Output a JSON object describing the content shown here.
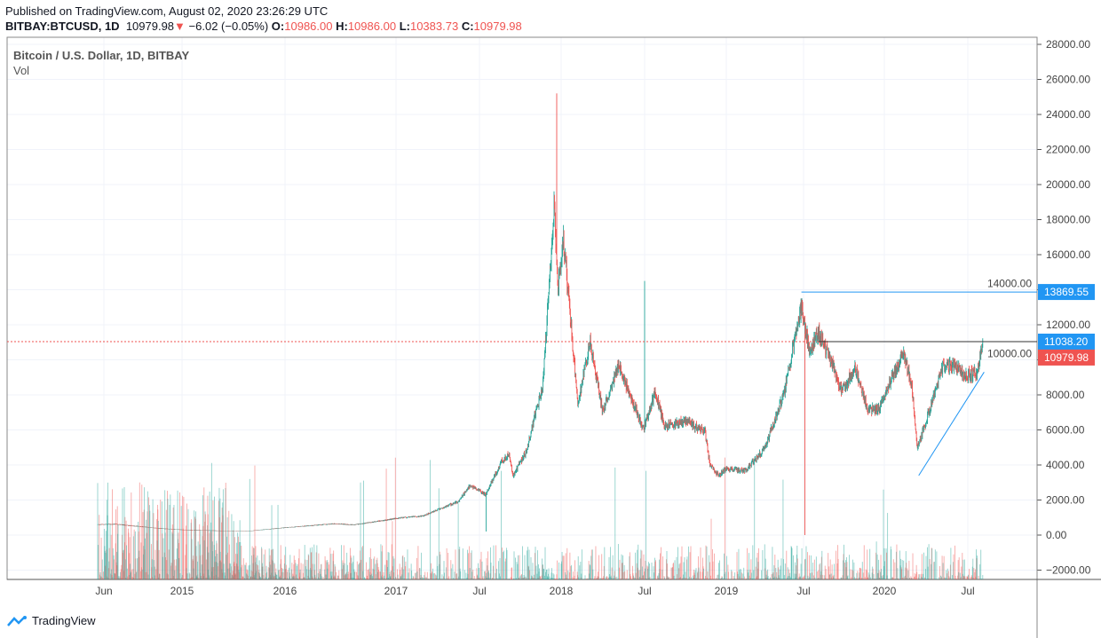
{
  "header": {
    "published": "Published on TradingView.com, August 02, 2020 23:26:29 UTC",
    "symbol": "BITBAY:BTCUSD, 1D",
    "last": "10979.98",
    "change": "−6.02 (−0.05%)",
    "o_label": "O:",
    "o": "10986.00",
    "h_label": "H:",
    "h": "10986.00",
    "l_label": "L:",
    "l": "10383.73",
    "c_label": "C:",
    "c": "10979.98"
  },
  "legend": {
    "title": "Bitcoin / U.S. Dollar, 1D, BITBAY",
    "vol": "Vol"
  },
  "footer": {
    "brand": "TradingView"
  },
  "colors": {
    "up": "#26a69a",
    "down": "#ef5350",
    "line": "#2196f3",
    "grid": "#f0f3fa"
  },
  "chart_data": {
    "type": "candlestick",
    "yticks": [
      "28000.00",
      "26000.00",
      "24000.00",
      "22000.00",
      "20000.00",
      "18000.00",
      "16000.00",
      "14000.00",
      "12000.00",
      "10000.00",
      "8000.00",
      "6000.00",
      "4000.00",
      "2000.00",
      "0.00",
      "−2000.00"
    ],
    "ylim": [
      -2500,
      28500
    ],
    "xticks": [
      {
        "date": "2014-06-01",
        "label": "Jun"
      },
      {
        "date": "2015-01-01",
        "label": "2015"
      },
      {
        "date": "2016-01-01",
        "label": "2016"
      },
      {
        "date": "2017-01-01",
        "label": "2017"
      },
      {
        "date": "2017-07-01",
        "label": "Jul"
      },
      {
        "date": "2018-01-01",
        "label": "2018"
      },
      {
        "date": "2018-07-01",
        "label": "Jul"
      },
      {
        "date": "2019-01-01",
        "label": "2019"
      },
      {
        "date": "2019-07-01",
        "label": "Jul"
      },
      {
        "date": "2020-01-01",
        "label": "2020"
      },
      {
        "date": "2020-07-01",
        "label": "Jul"
      }
    ],
    "price_path": [
      [
        "2014-05-20",
        600
      ],
      [
        "2014-07-01",
        620
      ],
      [
        "2014-09-01",
        500
      ],
      [
        "2014-11-01",
        380
      ],
      [
        "2015-01-01",
        300
      ],
      [
        "2015-03-01",
        270
      ],
      [
        "2015-06-01",
        240
      ],
      [
        "2015-09-01",
        240
      ],
      [
        "2015-11-15",
        350
      ],
      [
        "2016-01-01",
        420
      ],
      [
        "2016-06-15",
        650
      ],
      [
        "2016-08-15",
        580
      ],
      [
        "2016-12-15",
        900
      ],
      [
        "2017-03-01",
        1100
      ],
      [
        "2017-05-15",
        1900
      ],
      [
        "2017-06-10",
        2800
      ],
      [
        "2017-07-15",
        2300
      ],
      [
        "2017-08-20",
        4200
      ],
      [
        "2017-09-05",
        4600
      ],
      [
        "2017-09-15",
        3400
      ],
      [
        "2017-10-15",
        4800
      ],
      [
        "2017-11-05",
        7000
      ],
      [
        "2017-11-20",
        8300
      ],
      [
        "2017-12-07",
        15000
      ],
      [
        "2017-12-17",
        19200
      ],
      [
        "2017-12-24",
        14000
      ],
      [
        "2018-01-06",
        17000
      ],
      [
        "2018-02-06",
        7500
      ],
      [
        "2018-03-05",
        11000
      ],
      [
        "2018-04-01",
        7000
      ],
      [
        "2018-05-05",
        9700
      ],
      [
        "2018-06-29",
        6000
      ],
      [
        "2018-07-25",
        8200
      ],
      [
        "2018-08-14",
        6200
      ],
      [
        "2018-10-01",
        6500
      ],
      [
        "2018-11-14",
        5900
      ],
      [
        "2018-11-25",
        4000
      ],
      [
        "2018-12-15",
        3400
      ],
      [
        "2019-01-01",
        3800
      ],
      [
        "2019-02-15",
        3650
      ],
      [
        "2019-04-02",
        5000
      ],
      [
        "2019-05-15",
        8000
      ],
      [
        "2019-06-26",
        13000
      ],
      [
        "2019-07-15",
        10500
      ],
      [
        "2019-08-05",
        11500
      ],
      [
        "2019-09-01",
        10000
      ],
      [
        "2019-09-25",
        8200
      ],
      [
        "2019-10-26",
        9500
      ],
      [
        "2019-11-25",
        7200
      ],
      [
        "2019-12-20",
        7200
      ],
      [
        "2020-01-15",
        8800
      ],
      [
        "2020-02-12",
        10300
      ],
      [
        "2020-03-01",
        8500
      ],
      [
        "2020-03-13",
        5000
      ],
      [
        "2020-04-01",
        6500
      ],
      [
        "2020-05-07",
        9600
      ],
      [
        "2020-06-01",
        9700
      ],
      [
        "2020-07-01",
        9100
      ],
      [
        "2020-07-22",
        9300
      ],
      [
        "2020-08-02",
        10980
      ]
    ],
    "wicks": [
      [
        "2017-07-16",
        200
      ],
      [
        "2017-12-22",
        25200
      ],
      [
        "2018-07-01",
        14500
      ],
      [
        "2019-07-04",
        0
      ]
    ],
    "hlines": [
      {
        "price": 13869.55,
        "label": "13869.55",
        "from": "2019-06-26"
      },
      {
        "price": 11038.2,
        "label": "11038.20",
        "from": "2014-05-20",
        "style": "dotted"
      },
      {
        "price": 11038.2,
        "from": "2019-08-05"
      }
    ],
    "trendline": [
      [
        "2020-03-16",
        3400
      ],
      [
        "2020-08-05",
        9300
      ]
    ],
    "last_price": "10979.98"
  }
}
